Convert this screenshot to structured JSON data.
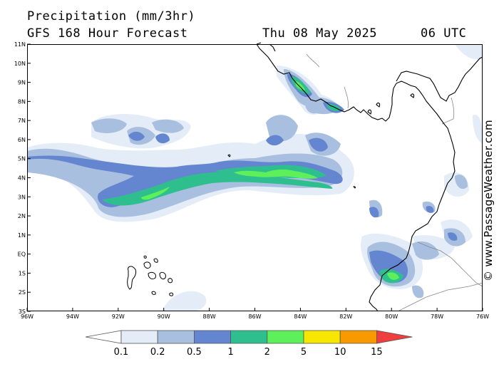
{
  "header": {
    "title": "Precipitation (mm/3hr)",
    "subtitle": "GFS 168 Hour Forecast",
    "date": "Thu 08 May 2025",
    "time": "06 UTC"
  },
  "credit": "© www.PassageWeather.com",
  "axes": {
    "lat_labels": [
      "11N",
      "10N",
      "9N",
      "8N",
      "7N",
      "6N",
      "5N",
      "4N",
      "3N",
      "2N",
      "1N",
      "EQ",
      "1S",
      "2S",
      "3S"
    ],
    "lon_labels": [
      "96W",
      "94W",
      "92W",
      "90W",
      "88W",
      "86W",
      "84W",
      "82W",
      "80W",
      "78W",
      "76W"
    ]
  },
  "legend": {
    "labels": [
      "0.1",
      "0.2",
      "0.5",
      "1",
      "2",
      "5",
      "10",
      "15"
    ],
    "colors": [
      "#ffffff",
      "#e4ecf7",
      "#a9bfe0",
      "#6485cf",
      "#2fbf8f",
      "#5ef05a",
      "#f7e600",
      "#f69a00",
      "#ee3e3e"
    ]
  },
  "colors": {
    "very_light": "#e4ecf7",
    "light": "#a9bfe0",
    "blue": "#6485cf",
    "teal": "#2fbf8f",
    "green": "#5ef05a",
    "coast": "#000000",
    "border": "#888888"
  }
}
